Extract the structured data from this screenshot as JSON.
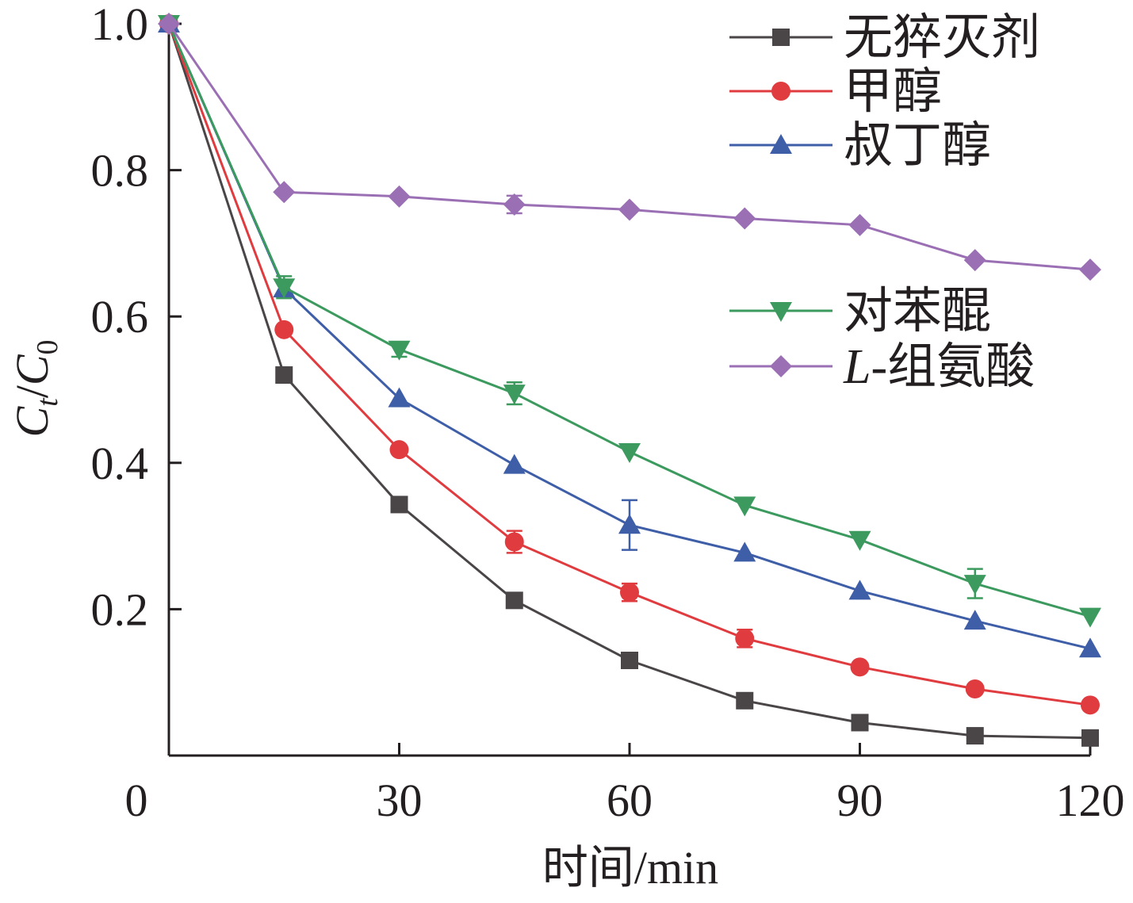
{
  "chart_data": {
    "type": "line",
    "xlabel": "时间/min",
    "ylabel": {
      "main": "C",
      "sub1": "t",
      "slash": "/",
      "main2": "C",
      "sub2": "0"
    },
    "xlim": [
      0,
      120
    ],
    "ylim": [
      0,
      1.0
    ],
    "xticks": [
      0,
      30,
      60,
      90,
      120
    ],
    "xtick_labels": [
      "0",
      "30",
      "60",
      "90",
      "120"
    ],
    "yticks": [
      0.2,
      0.4,
      0.6,
      0.8,
      1.0
    ],
    "ytick_labels": [
      "0.2",
      "0.4",
      "0.6",
      "0.8",
      "1.0"
    ],
    "grid": false,
    "legend_position": "right",
    "x": [
      0,
      15,
      30,
      45,
      60,
      75,
      90,
      105,
      120
    ],
    "series": [
      {
        "name": "无猝灭剂",
        "color": "#4a4647",
        "marker": "square",
        "values": [
          1.0,
          0.52,
          0.343,
          0.212,
          0.13,
          0.075,
          0.045,
          0.027,
          0.024
        ],
        "errors": [
          0,
          0,
          0,
          0.01,
          0,
          0,
          0,
          0,
          0
        ]
      },
      {
        "name": "甲醇",
        "color": "#e03c40",
        "marker": "circle",
        "values": [
          1.0,
          0.582,
          0.418,
          0.292,
          0.223,
          0.16,
          0.121,
          0.091,
          0.069
        ],
        "errors": [
          0,
          0,
          0,
          0.015,
          0.012,
          0.012,
          0,
          0,
          0
        ]
      },
      {
        "name": "叔丁醇",
        "color": "#3e5ea8",
        "marker": "triangle-up",
        "values": [
          1.0,
          0.638,
          0.488,
          0.397,
          0.315,
          0.277,
          0.225,
          0.184,
          0.146
        ],
        "errors": [
          0,
          0,
          0,
          0,
          0.034,
          0,
          0,
          0,
          0
        ]
      },
      {
        "name": "对苯醌",
        "color": "#3c9a5f",
        "marker": "triangle-down",
        "values": [
          1.0,
          0.64,
          0.555,
          0.495,
          0.415,
          0.342,
          0.295,
          0.235,
          0.19
        ],
        "errors": [
          0,
          0.015,
          0.01,
          0.015,
          0,
          0,
          0,
          0.02,
          0
        ]
      },
      {
        "name": "L-组氨酸",
        "color": "#9b6fb4",
        "marker": "diamond",
        "values": [
          1.0,
          0.77,
          0.764,
          0.753,
          0.746,
          0.734,
          0.725,
          0.677,
          0.664
        ],
        "errors": [
          0,
          0,
          0,
          0.012,
          0,
          0,
          0,
          0,
          0
        ]
      }
    ]
  },
  "legend": {
    "items": [
      "无猝灭剂",
      "甲醇",
      "叔丁醇",
      "对苯醌"
    ],
    "histidine": {
      "prefix": "L",
      "rest": "-组氨酸"
    }
  }
}
